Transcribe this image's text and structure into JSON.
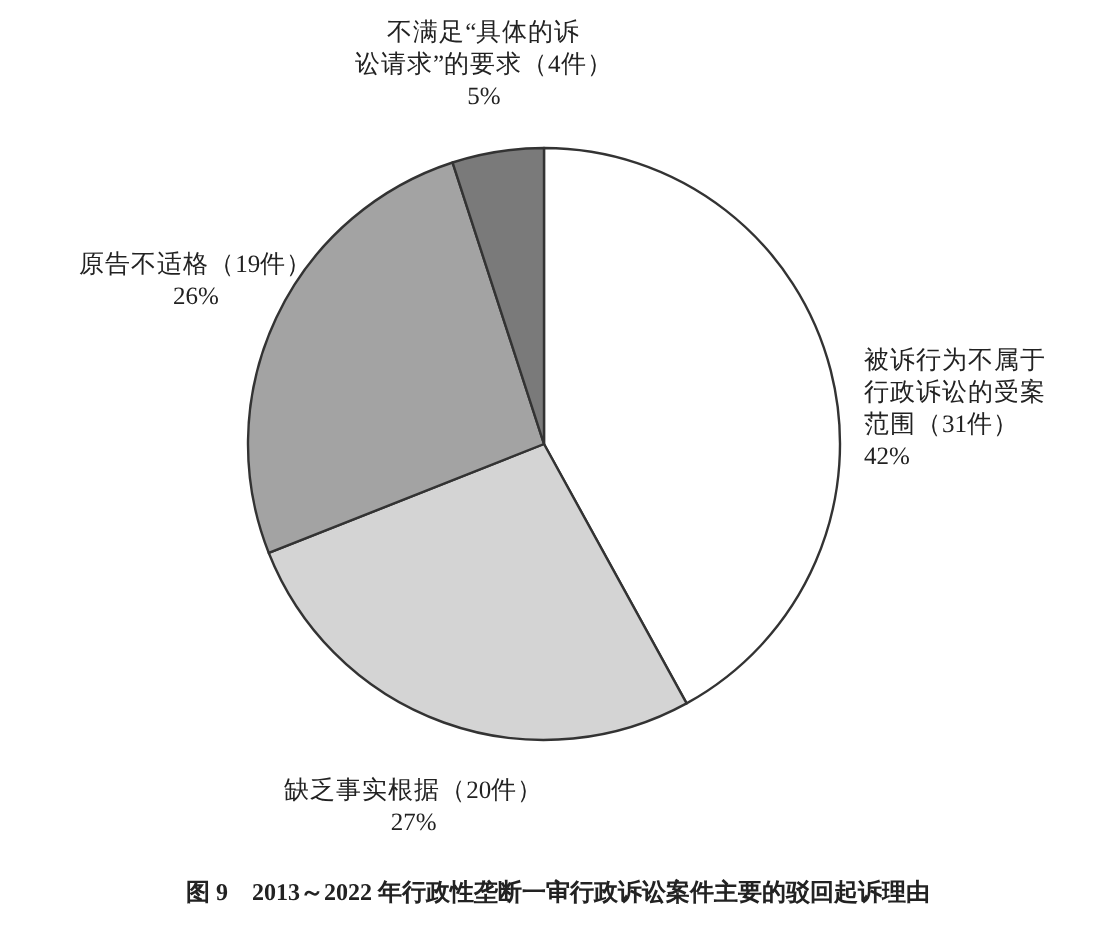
{
  "chart_data": {
    "type": "pie",
    "title": "图 9　2013～2022 年行政性垄断一审行政诉讼案件主要的驳回起诉理由",
    "categories": [
      "被诉行为不属于行政诉讼的受案范围（31件）",
      "缺乏事实根据（20件）",
      "原告不适格（19件）",
      "不满足“具体的诉讼请求”的要求（4件）"
    ],
    "values": [
      42,
      27,
      26,
      5
    ],
    "value_labels": [
      "42%",
      "27%",
      "26%",
      "5%"
    ],
    "colors": [
      "#ffffff",
      "#d4d4d4",
      "#a3a3a3",
      "#7a7a7a"
    ]
  }
}
